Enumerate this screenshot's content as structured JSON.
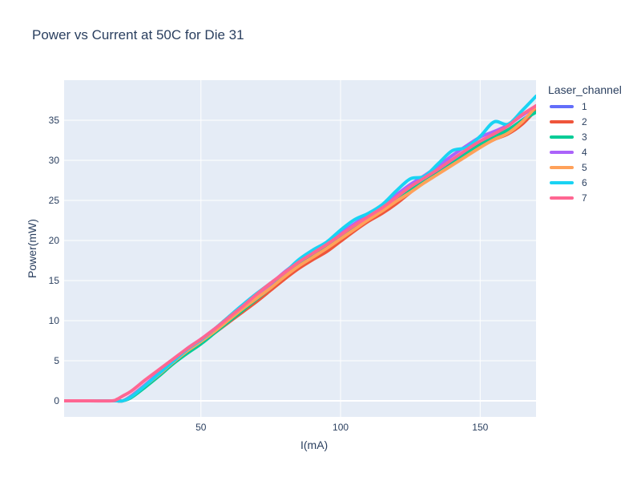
{
  "chart_data": {
    "type": "line",
    "title": "Power vs Current at 50C for Die 31",
    "xlabel": "I(mA)",
    "ylabel": "Power(mW)",
    "xlim": [
      1,
      170
    ],
    "ylim": [
      -2,
      40
    ],
    "x_ticks": [
      50,
      100,
      150
    ],
    "y_ticks": [
      0,
      5,
      10,
      15,
      20,
      25,
      30,
      35
    ],
    "grid": true,
    "legend_title": "Laser_channel",
    "legend_position": "right",
    "x": [
      0,
      10,
      18,
      20,
      22,
      25,
      30,
      35,
      40,
      45,
      50,
      55,
      60,
      65,
      70,
      75,
      80,
      85,
      90,
      95,
      100,
      105,
      110,
      115,
      120,
      125,
      130,
      135,
      140,
      145,
      150,
      155,
      160,
      165,
      170
    ],
    "series": [
      {
        "name": "1",
        "color": "#636efa",
        "values": [
          0,
          0,
          0,
          0,
          0,
          0.5,
          1.8,
          3.3,
          4.9,
          6.4,
          7.6,
          8.9,
          10.3,
          11.6,
          12.9,
          14.3,
          15.8,
          17.1,
          18.2,
          19.3,
          20.6,
          21.8,
          22.8,
          23.9,
          25.2,
          26.5,
          27.5,
          28.6,
          29.9,
          31.2,
          32.2,
          33.0,
          33.8,
          35.0,
          36.3
        ]
      },
      {
        "name": "2",
        "color": "#ef553b",
        "values": [
          0,
          0,
          0,
          0,
          0,
          0.6,
          2.0,
          3.4,
          4.8,
          6.0,
          7.2,
          8.5,
          9.8,
          11.1,
          12.4,
          13.8,
          15.2,
          16.5,
          17.6,
          18.6,
          19.9,
          21.2,
          22.4,
          23.4,
          24.6,
          26.0,
          27.3,
          28.4,
          29.5,
          30.6,
          31.7,
          32.6,
          33.3,
          34.5,
          36.3
        ]
      },
      {
        "name": "3",
        "color": "#00cc96",
        "values": [
          0,
          0,
          0,
          0,
          0,
          0.4,
          1.7,
          3.1,
          4.6,
          5.9,
          7.1,
          8.5,
          9.9,
          11.3,
          12.7,
          14.1,
          15.6,
          16.9,
          18.0,
          19.2,
          20.5,
          21.7,
          22.9,
          24.0,
          25.3,
          26.4,
          27.4,
          28.4,
          29.6,
          30.8,
          32.0,
          33.0,
          33.8,
          35.0,
          36.0
        ]
      },
      {
        "name": "4",
        "color": "#ab63fa",
        "values": [
          0,
          0,
          0,
          0,
          0,
          0.6,
          2.0,
          3.5,
          5.0,
          6.5,
          7.7,
          9.0,
          10.4,
          11.8,
          13.2,
          14.6,
          16.1,
          17.4,
          18.6,
          19.7,
          20.9,
          22.1,
          23.2,
          24.4,
          25.7,
          27.0,
          28.1,
          29.3,
          30.6,
          31.8,
          32.9,
          33.6,
          34.4,
          35.6,
          36.8
        ]
      },
      {
        "name": "5",
        "color": "#ffa15a",
        "values": [
          0,
          0,
          0,
          0,
          0,
          0.5,
          1.9,
          3.3,
          4.8,
          6.2,
          7.4,
          8.7,
          10.1,
          11.5,
          12.8,
          14.1,
          15.5,
          16.8,
          17.9,
          19.0,
          20.2,
          21.4,
          22.6,
          23.7,
          24.9,
          26.0,
          27.2,
          28.3,
          29.4,
          30.5,
          31.6,
          32.6,
          33.4,
          34.8,
          36.7
        ]
      },
      {
        "name": "6",
        "color": "#19d3f3",
        "values": [
          0,
          0,
          0,
          0,
          0,
          0.5,
          1.9,
          3.4,
          4.9,
          6.4,
          7.6,
          9.0,
          10.5,
          12.0,
          13.4,
          14.7,
          16.0,
          17.6,
          18.8,
          19.8,
          21.3,
          22.6,
          23.4,
          24.5,
          26.2,
          27.7,
          28.0,
          29.6,
          31.2,
          31.6,
          33.0,
          34.8,
          34.5,
          36.2,
          38.0
        ]
      },
      {
        "name": "7",
        "color": "#ff6692",
        "values": [
          0,
          0,
          0,
          0.2,
          0.6,
          1.2,
          2.6,
          3.9,
          5.2,
          6.5,
          7.7,
          9.0,
          10.4,
          11.8,
          13.3,
          14.7,
          16.0,
          17.3,
          18.4,
          19.5,
          20.7,
          21.9,
          23.0,
          24.1,
          25.4,
          26.7,
          27.8,
          28.9,
          30.1,
          31.3,
          32.4,
          33.3,
          34.3,
          35.7,
          36.8
        ]
      }
    ]
  }
}
